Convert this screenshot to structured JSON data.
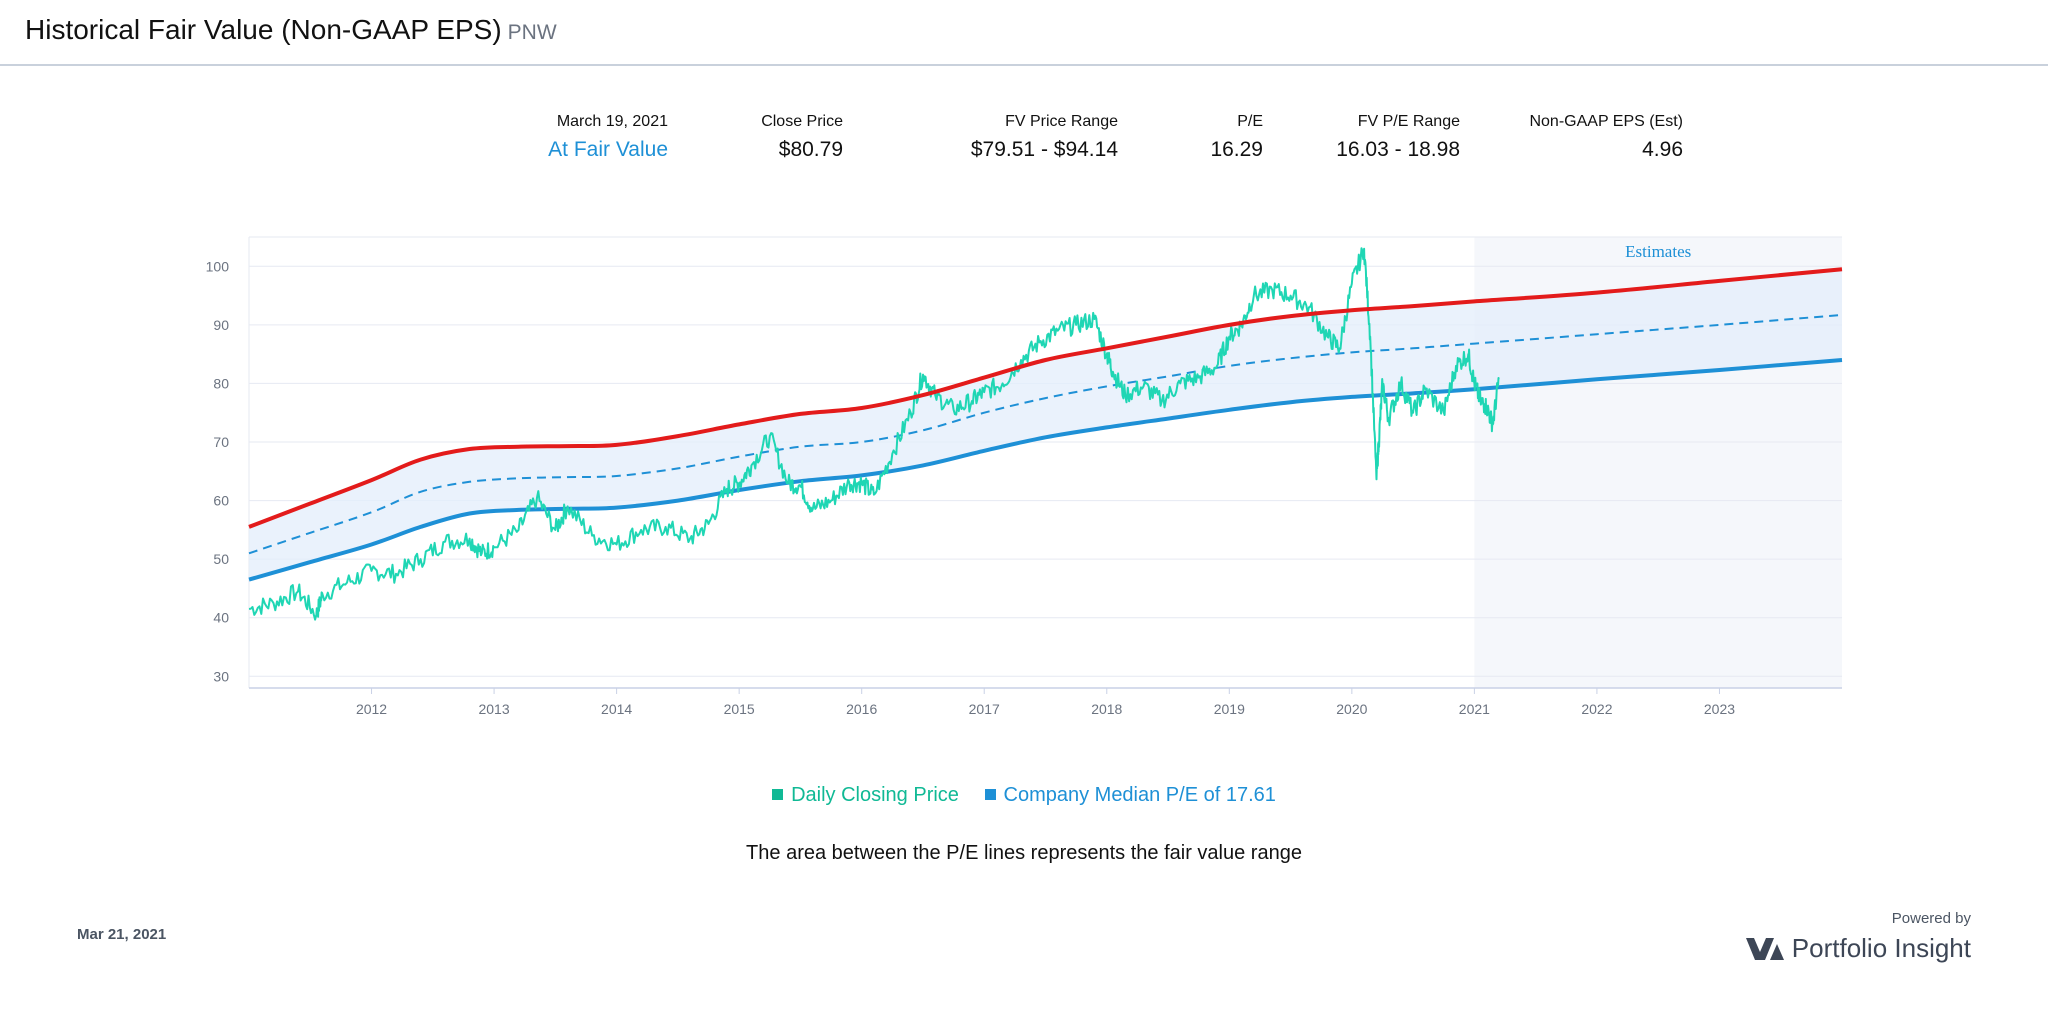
{
  "header": {
    "title": "Historical Fair Value (Non-GAAP EPS)",
    "ticker": "PNW"
  },
  "stats": [
    {
      "label": "March 19, 2021",
      "value": "At Fair Value",
      "accent": true
    },
    {
      "label": "Close Price",
      "value": "$80.79"
    },
    {
      "label": "FV Price Range",
      "value": "$79.51  - $94.14"
    },
    {
      "label": "P/E",
      "value": "16.29"
    },
    {
      "label": "FV P/E Range",
      "value": "16.03  - 18.98"
    },
    {
      "label": "Non-GAAP EPS (Est)",
      "value": "4.96"
    }
  ],
  "chart_data": {
    "type": "line",
    "xlim": [
      2011.0,
      2024.0
    ],
    "ylim": [
      28,
      105
    ],
    "y_ticks": [
      30,
      40,
      50,
      60,
      70,
      80,
      90,
      100
    ],
    "x_ticks": [
      2012,
      2013,
      2014,
      2015,
      2016,
      2017,
      2018,
      2019,
      2020,
      2021,
      2022,
      2023
    ],
    "grid": true,
    "estimates_region": {
      "from": 2021.0,
      "label": "Estimates"
    },
    "series": [
      {
        "role": "upper-pe",
        "color": "#e31b1b",
        "x": [
          2011.0,
          2011.5,
          2012.0,
          2012.4,
          2012.8,
          2013.2,
          2013.6,
          2014.0,
          2014.5,
          2015.0,
          2015.5,
          2016.0,
          2016.5,
          2017.0,
          2017.5,
          2018.0,
          2018.5,
          2019.0,
          2019.5,
          2020.0,
          2020.5,
          2021.0,
          2022.0,
          2023.0,
          2024.0
        ],
        "y": [
          55.5,
          59.5,
          63.5,
          67.0,
          68.8,
          69.2,
          69.3,
          69.5,
          71.0,
          73.0,
          74.8,
          75.8,
          78.0,
          81.0,
          84.0,
          86.0,
          88.0,
          90.0,
          91.5,
          92.5,
          93.2,
          94.0,
          95.5,
          97.5,
          99.5
        ]
      },
      {
        "role": "median-pe",
        "color": "#1e90d6",
        "dashed": true,
        "x": [
          2011.0,
          2011.5,
          2012.0,
          2012.4,
          2012.8,
          2013.2,
          2013.6,
          2014.0,
          2014.5,
          2015.0,
          2015.5,
          2016.0,
          2016.5,
          2017.0,
          2017.5,
          2018.0,
          2018.5,
          2019.0,
          2019.5,
          2020.0,
          2020.5,
          2021.0,
          2022.0,
          2023.0,
          2024.0
        ],
        "y": [
          51.0,
          54.5,
          58.0,
          61.5,
          63.2,
          63.8,
          64.0,
          64.2,
          65.5,
          67.5,
          69.2,
          70.0,
          72.0,
          75.0,
          77.5,
          79.5,
          81.2,
          83.0,
          84.3,
          85.3,
          86.0,
          86.8,
          88.4,
          90.0,
          91.7
        ]
      },
      {
        "role": "lower-pe",
        "color": "#1e90d6",
        "x": [
          2011.0,
          2011.5,
          2012.0,
          2012.4,
          2012.8,
          2013.2,
          2013.6,
          2014.0,
          2014.5,
          2015.0,
          2015.5,
          2016.0,
          2016.5,
          2017.0,
          2017.5,
          2018.0,
          2018.5,
          2019.0,
          2019.5,
          2020.0,
          2020.5,
          2021.0,
          2022.0,
          2023.0,
          2024.0
        ],
        "y": [
          46.5,
          49.5,
          52.5,
          55.5,
          57.8,
          58.4,
          58.6,
          58.8,
          60.0,
          61.8,
          63.3,
          64.3,
          66.0,
          68.5,
          70.8,
          72.5,
          74.0,
          75.5,
          76.8,
          77.7,
          78.3,
          79.0,
          80.7,
          82.3,
          84.0
        ]
      },
      {
        "name": "Daily Closing Price",
        "role": "price",
        "color": "#1fd6b4",
        "x": [
          2011.0,
          2011.2,
          2011.4,
          2011.55,
          2011.6,
          2011.8,
          2012.0,
          2012.2,
          2012.4,
          2012.6,
          2012.8,
          2012.9,
          2013.0,
          2013.2,
          2013.35,
          2013.5,
          2013.6,
          2013.8,
          2014.0,
          2014.2,
          2014.4,
          2014.6,
          2014.75,
          2014.9,
          2015.0,
          2015.1,
          2015.25,
          2015.4,
          2015.5,
          2015.6,
          2015.75,
          2015.9,
          2016.0,
          2016.1,
          2016.25,
          2016.4,
          2016.5,
          2016.6,
          2016.75,
          2016.9,
          2017.0,
          2017.15,
          2017.3,
          2017.45,
          2017.6,
          2017.75,
          2017.9,
          2018.0,
          2018.05,
          2018.15,
          2018.3,
          2018.45,
          2018.6,
          2018.75,
          2018.9,
          2019.0,
          2019.1,
          2019.2,
          2019.35,
          2019.5,
          2019.65,
          2019.8,
          2019.9,
          2020.0,
          2020.1,
          2020.15,
          2020.2,
          2020.22,
          2020.25,
          2020.3,
          2020.4,
          2020.5,
          2020.6,
          2020.75,
          2020.85,
          2020.95,
          2021.0,
          2021.05,
          2021.1,
          2021.15,
          2021.2
        ],
        "y": [
          41.5,
          42.5,
          44.5,
          40.5,
          44.0,
          46.0,
          48.0,
          47.5,
          50.0,
          53.0,
          53.5,
          51.0,
          52.0,
          55.0,
          60.5,
          55.0,
          59.0,
          54.0,
          52.5,
          55.0,
          55.5,
          53.5,
          56.0,
          62.0,
          63.0,
          66.0,
          71.0,
          63.0,
          62.5,
          58.5,
          60.0,
          63.0,
          63.0,
          61.0,
          68.0,
          75.0,
          81.5,
          78.0,
          75.5,
          77.0,
          78.5,
          80.0,
          84.0,
          87.0,
          89.0,
          90.0,
          91.0,
          85.0,
          82.0,
          78.0,
          79.5,
          77.0,
          80.0,
          81.0,
          83.0,
          88.0,
          90.0,
          95.0,
          96.0,
          95.0,
          93.0,
          88.0,
          86.0,
          97.0,
          103.0,
          88.0,
          64.0,
          70.0,
          80.0,
          74.0,
          80.0,
          75.0,
          79.0,
          75.0,
          83.0,
          85.0,
          80.0,
          77.0,
          76.0,
          73.0,
          80.79
        ]
      },
      {
        "name": "Company Median P/E of 17.61",
        "role": "legend-only",
        "color": "#1e90d6"
      }
    ]
  },
  "legend": [
    {
      "label": "Daily Closing Price",
      "color": "#10b995"
    },
    {
      "label": "Company Median P/E of 17.61",
      "color": "#1e90d6"
    }
  ],
  "note": "The area between the P/E lines represents the fair value range",
  "footer": {
    "date": "Mar 21, 2021",
    "powered_by": "Powered by",
    "brand": "Portfolio Insight"
  }
}
